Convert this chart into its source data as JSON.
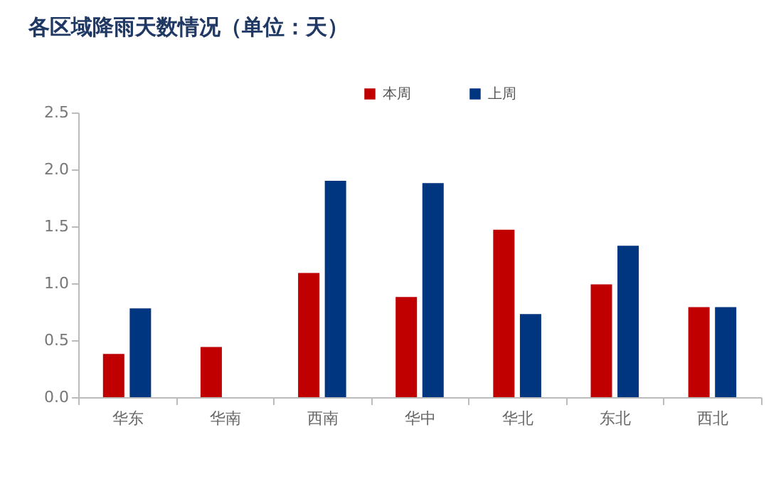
{
  "chart_data": {
    "type": "bar",
    "title": "各区域降雨天数情况（单位：天）",
    "categories": [
      "华东",
      "华南",
      "西南",
      "华中",
      "华北",
      "东北",
      "西北"
    ],
    "series": [
      {
        "name": "本周",
        "color": "#c00000",
        "values": [
          0.38,
          0.44,
          1.09,
          0.88,
          1.47,
          0.99,
          0.79
        ]
      },
      {
        "name": "上周",
        "color": "#003580",
        "values": [
          0.78,
          0,
          1.9,
          1.88,
          0.73,
          1.33,
          0.79
        ]
      }
    ],
    "ylim": [
      0,
      2.5
    ],
    "yticks": [
      {
        "value": 0,
        "label": "0.0"
      },
      {
        "value": 0.5,
        "label": "0.5"
      },
      {
        "value": 1,
        "label": "1.0"
      },
      {
        "value": 1.5,
        "label": "1.5"
      },
      {
        "value": 2,
        "label": "2.0"
      },
      {
        "value": 2.5,
        "label": "2.5"
      }
    ],
    "grid": false,
    "legend": "top"
  }
}
